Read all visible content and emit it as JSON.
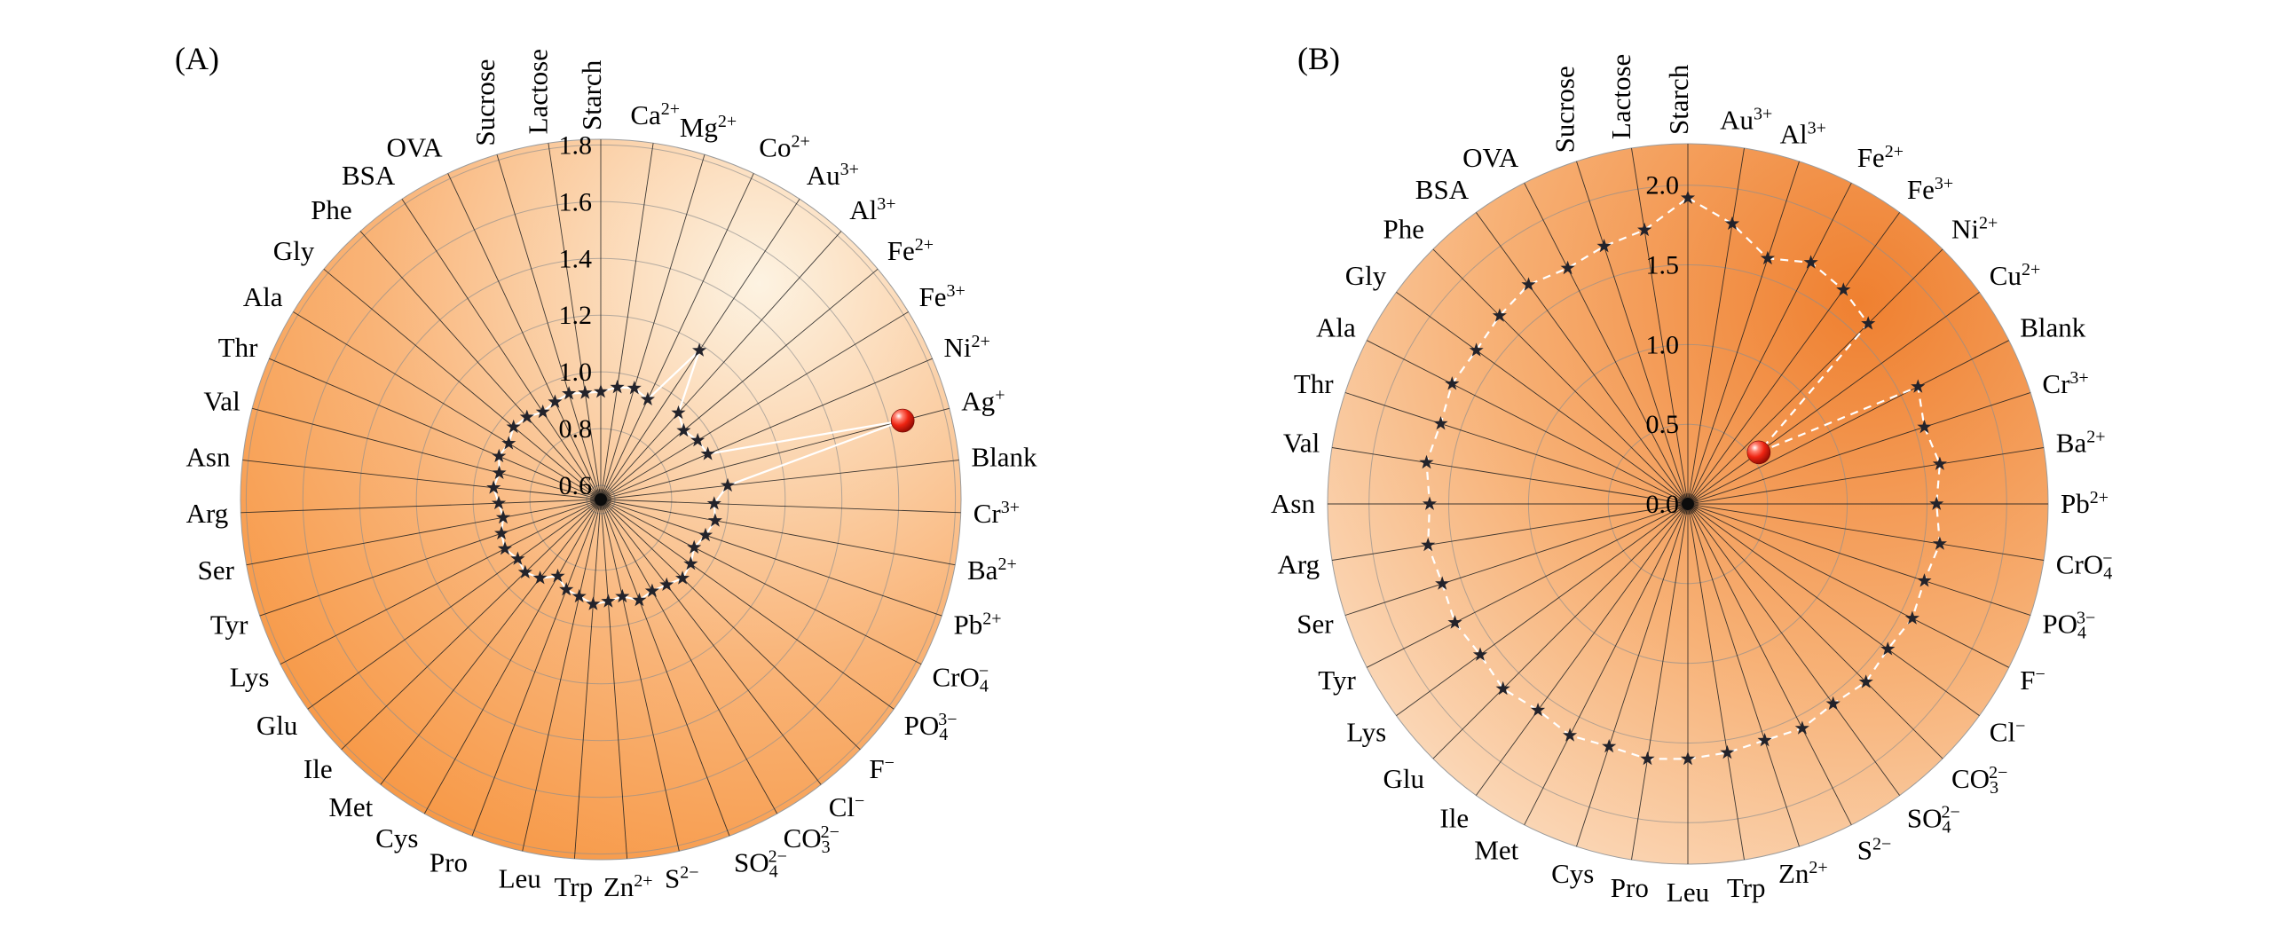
{
  "figure": {
    "background_color": "#ffffff",
    "highlight_sphere_stops": [
      [
        "0%",
        "#ffffff"
      ],
      [
        "22%",
        "#ff8272"
      ],
      [
        "55%",
        "#ee2412"
      ],
      [
        "100%",
        "#8d0a02"
      ]
    ]
  },
  "chart_data": [
    {
      "type": "radar",
      "panel_label": "(A)",
      "axis": {
        "tick_labels": [
          1.8,
          1.6,
          1.4,
          1.2,
          1.0,
          0.8,
          0.6
        ],
        "grid_values": [
          0.6,
          0.8,
          1.0,
          1.2,
          1.4,
          1.6,
          1.8
        ],
        "center_value": 0.55,
        "edge_value": 1.82
      },
      "categories": [
        "Starch",
        "Ca^2+",
        "Mg^2+",
        "Co^2+",
        "Au^3+",
        "Al^3+",
        "Fe^2+",
        "Fe^3+",
        "Ni^2+",
        "Ag^+",
        "Blank",
        "Cr^3+",
        "Ba^2+",
        "Pb^2+",
        "CrO_4^−",
        "PO_4^3−",
        "F^−",
        "Cl^−",
        "CO_3^2−",
        "SO_4^2−",
        "S^2−",
        "Zn^2+",
        "Trp",
        "Leu",
        "Pro",
        "Cys",
        "Met",
        "Ile",
        "Glu",
        "Lys",
        "Tyr",
        "Ser",
        "Arg",
        "Asn",
        "Val",
        "Thr",
        "Ala",
        "Gly",
        "Phe",
        "BSA",
        "OVA",
        "Sucrose",
        "Lactose"
      ],
      "values": [
        0.93,
        0.95,
        0.96,
        0.94,
        1.18,
        0.96,
        0.93,
        0.95,
        0.96,
        1.65,
        1.0,
        0.95,
        0.96,
        0.94,
        0.92,
        0.94,
        0.95,
        0.93,
        0.92,
        0.93,
        0.9,
        0.91,
        0.92,
        0.9,
        0.89,
        0.86,
        0.9,
        0.92,
        0.91,
        0.93,
        0.92,
        0.9,
        0.91,
        0.93,
        0.92,
        0.94,
        0.93,
        0.95,
        0.94,
        0.92,
        0.93,
        0.94,
        0.93
      ],
      "highlight": {
        "category": "Ag^+",
        "index": 9,
        "value": 1.65,
        "marker": "red-sphere"
      },
      "line": {
        "color": "#ffffff",
        "style": "solid"
      },
      "marker": {
        "shape": "star",
        "color": "#23232b"
      },
      "vertical_labels": [
        "Sucrose",
        "Lactose",
        "Starch"
      ],
      "background_gradient": {
        "type": "radial",
        "center": [
          "72%",
          "20%"
        ],
        "radius": "118%",
        "stops": [
          [
            "0%",
            "#fdf3e2"
          ],
          [
            "45%",
            "#f9b478"
          ],
          [
            "100%",
            "#f5811c"
          ]
        ]
      }
    },
    {
      "type": "radar",
      "panel_label": "(B)",
      "axis": {
        "tick_labels": [
          2.0,
          1.5,
          1.0,
          0.5,
          0.0
        ],
        "grid_values": [
          0.5,
          1.0,
          1.5,
          2.0
        ],
        "center_value": 0.0,
        "edge_value": 2.26
      },
      "categories": [
        "Starch",
        "Au^3+",
        "Al^3+",
        "Fe^2+",
        "Fe^3+",
        "Ni^2+",
        "Cu^2+",
        "Blank",
        "Cr^3+",
        "Ba^2+",
        "Pb^2+",
        "CrO_4^−",
        "PO_4^3−",
        "F^−",
        "Cl^−",
        "CO_3^2−",
        "SO_4^2−",
        "S^2−",
        "Zn^2+",
        "Trp",
        "Leu",
        "Pro",
        "Cys",
        "Met",
        "Ile",
        "Glu",
        "Lys",
        "Tyr",
        "Ser",
        "Arg",
        "Asn",
        "Val",
        "Thr",
        "Ala",
        "Gly",
        "Phe",
        "BSA",
        "OVA",
        "Sucrose",
        "Lactose"
      ],
      "values": [
        1.92,
        1.78,
        1.62,
        1.7,
        1.66,
        1.6,
        0.55,
        1.62,
        1.56,
        1.6,
        1.56,
        1.6,
        1.56,
        1.58,
        1.55,
        1.58,
        1.55,
        1.58,
        1.56,
        1.58,
        1.6,
        1.62,
        1.6,
        1.63,
        1.6,
        1.64,
        1.61,
        1.64,
        1.62,
        1.65,
        1.62,
        1.66,
        1.63,
        1.66,
        1.64,
        1.67,
        1.7,
        1.66,
        1.7,
        1.74
      ],
      "highlight": {
        "category": "Cu^2+",
        "index": 6,
        "value": 0.55,
        "marker": "red-sphere"
      },
      "line": {
        "color": "#ffffff",
        "style": "dashed"
      },
      "marker": {
        "shape": "star",
        "color": "#23232b"
      },
      "vertical_labels": [
        "Sucrose",
        "Lactose",
        "Starch"
      ],
      "background_gradient": {
        "type": "radial",
        "center": [
          "74%",
          "22%"
        ],
        "radius": "115%",
        "stops": [
          [
            "0%",
            "#ef8030"
          ],
          [
            "45%",
            "#f7b176"
          ],
          [
            "100%",
            "#fdf4e8"
          ]
        ]
      }
    }
  ]
}
